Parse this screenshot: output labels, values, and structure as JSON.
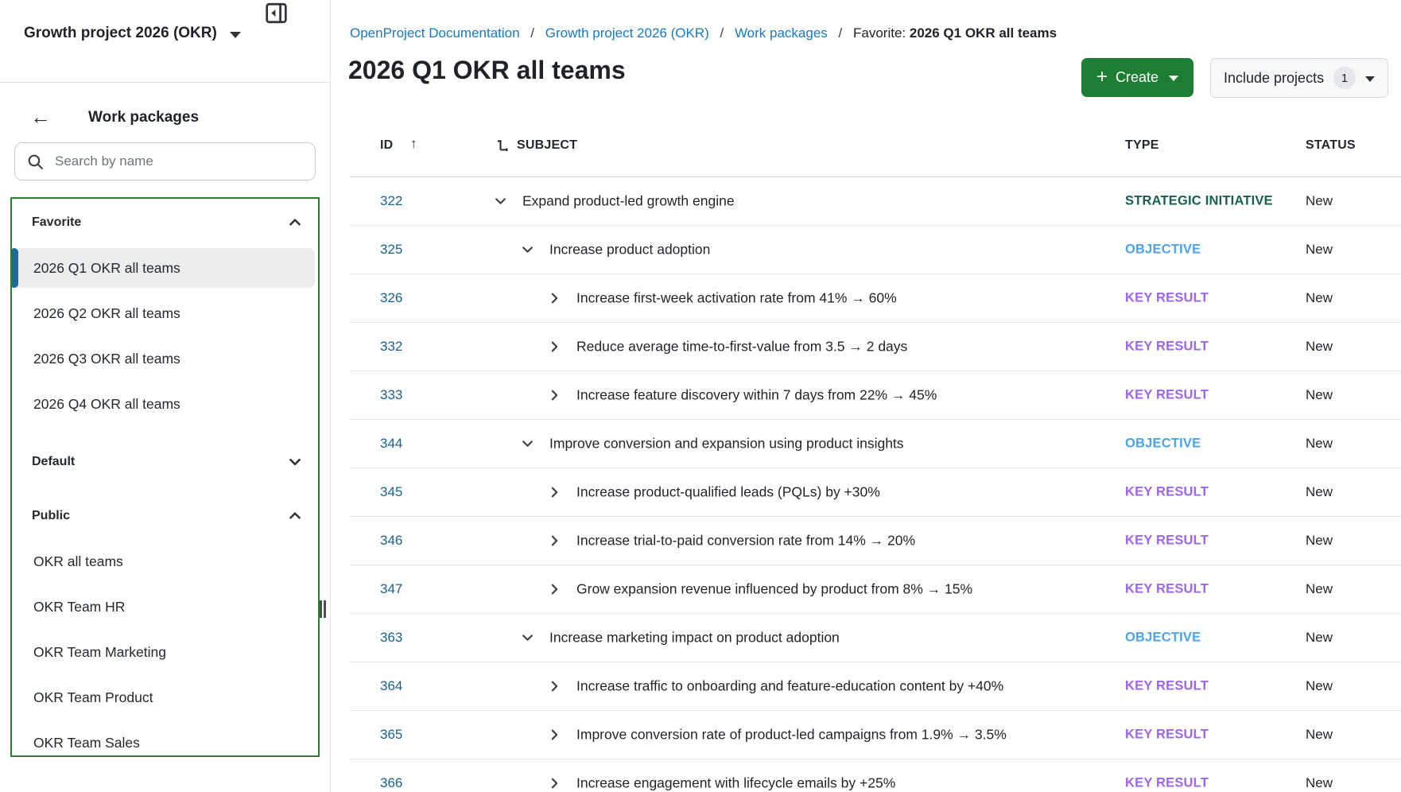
{
  "sidebar": {
    "project_name": "Growth project 2026 (OKR)",
    "back_title": "Work packages",
    "search_placeholder": "Search by name",
    "sections": [
      {
        "label": "Favorite",
        "state": "expanded",
        "items": [
          "2026 Q1 OKR all teams",
          "2026 Q2 OKR all teams",
          "2026 Q3 OKR all teams",
          "2026 Q4 OKR all teams"
        ],
        "selected_item": "2026 Q1 OKR all teams"
      },
      {
        "label": "Default",
        "state": "collapsed",
        "items": [],
        "selected_item": null
      },
      {
        "label": "Public",
        "state": "expanded",
        "items": [
          "OKR all teams",
          "OKR Team HR",
          "OKR Team Marketing",
          "OKR Team Product",
          "OKR Team Sales"
        ],
        "selected_item": null
      }
    ],
    "selection_border_color": "#2e7d32",
    "selected_marker_color": "#20689c"
  },
  "breadcrumb": {
    "links": [
      {
        "label": "OpenProject Documentation"
      },
      {
        "label": "Growth project 2026 (OKR)"
      },
      {
        "label": "Work packages"
      }
    ],
    "separator": "/",
    "current_prefix": "Favorite:",
    "current": "2026 Q1 OKR all teams",
    "link_color": "#1779c4"
  },
  "header": {
    "page_title": "2026 Q1 OKR all teams",
    "create_label": "Create",
    "create_color": "#1e7e34",
    "include_projects_label": "Include projects",
    "include_projects_count": "1"
  },
  "table": {
    "columns": {
      "id": "ID",
      "subject": "SUBJECT",
      "type": "TYPE",
      "status": "STATUS"
    },
    "sort": {
      "column": "ID",
      "direction": "asc",
      "arrow": "↑"
    },
    "type_colors": {
      "STRATEGIC INITIATIVE": "#17604e",
      "OBJECTIVE": "#4ba2ec",
      "KEY RESULT": "#9d64ee"
    },
    "id_link_color": "#19618f",
    "rows": [
      {
        "id": "322",
        "level": 1,
        "expanded": true,
        "subject": "Expand product-led growth engine",
        "type": "STRATEGIC INITIATIVE",
        "status": "New"
      },
      {
        "id": "325",
        "level": 2,
        "expanded": true,
        "subject": "Increase product adoption",
        "type": "OBJECTIVE",
        "status": "New"
      },
      {
        "id": "326",
        "level": 3,
        "expanded": false,
        "subject": "Increase first-week activation rate from 41% → 60%",
        "type": "KEY RESULT",
        "status": "New"
      },
      {
        "id": "332",
        "level": 3,
        "expanded": false,
        "subject": "Reduce average time-to-first-value from 3.5 → 2 days",
        "type": "KEY RESULT",
        "status": "New"
      },
      {
        "id": "333",
        "level": 3,
        "expanded": false,
        "subject": "Increase feature discovery within 7 days from 22% → 45%",
        "type": "KEY RESULT",
        "status": "New"
      },
      {
        "id": "344",
        "level": 2,
        "expanded": true,
        "subject": "Improve conversion and expansion using product insights",
        "type": "OBJECTIVE",
        "status": "New"
      },
      {
        "id": "345",
        "level": 3,
        "expanded": false,
        "subject": "Increase product-qualified leads (PQLs) by +30%",
        "type": "KEY RESULT",
        "status": "New"
      },
      {
        "id": "346",
        "level": 3,
        "expanded": false,
        "subject": "Increase trial-to-paid conversion rate from 14% → 20%",
        "type": "KEY RESULT",
        "status": "New"
      },
      {
        "id": "347",
        "level": 3,
        "expanded": false,
        "subject": "Grow expansion revenue influenced by product from 8% → 15%",
        "type": "KEY RESULT",
        "status": "New"
      },
      {
        "id": "363",
        "level": 2,
        "expanded": true,
        "subject": "Increase marketing impact on product adoption",
        "type": "OBJECTIVE",
        "status": "New"
      },
      {
        "id": "364",
        "level": 3,
        "expanded": false,
        "subject": "Increase traffic to onboarding and feature-education content by +40%",
        "type": "KEY RESULT",
        "status": "New"
      },
      {
        "id": "365",
        "level": 3,
        "expanded": false,
        "subject": "Improve conversion rate of product-led campaigns from 1.9% → 3.5%",
        "type": "KEY RESULT",
        "status": "New"
      },
      {
        "id": "366",
        "level": 3,
        "expanded": false,
        "subject": "Increase engagement with lifecycle emails by +25%",
        "type": "KEY RESULT",
        "status": "New"
      }
    ]
  }
}
